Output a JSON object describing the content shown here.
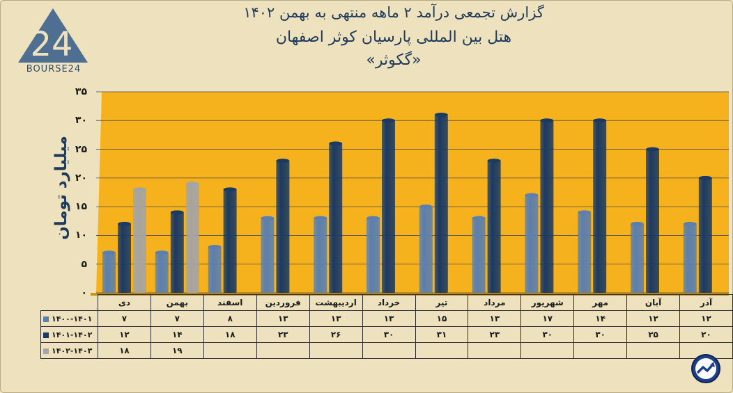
{
  "header": {
    "title_line1": "گزارش تجمعی درآمد ۲ ماهه منتهی به بهمن ۱۴۰۲",
    "title_line2": "هتل بین المللی پارسیان کوثر اصفهان",
    "title_line3": "«گکوثر»"
  },
  "logo": {
    "text": "BOURSE24",
    "icon": "bourse24-logo-icon"
  },
  "badge": {
    "icon": "trend-arrow-icon"
  },
  "colors": {
    "plot_bg": "#f6b21c",
    "series1": "#5b7fae",
    "series2": "#1b3a63",
    "series3": "#a4a4a4",
    "background": "#ede2bd"
  },
  "chart_data": {
    "type": "bar",
    "title": "گزارش تجمعی درآمد ۲ ماهه منتهی به بهمن ۱۴۰۲",
    "ylabel": "میلیارد تومان",
    "xlabel": "",
    "ylim": [
      0,
      35
    ],
    "y_ticks": [
      "۰",
      "۵",
      "۱۰",
      "۱۵",
      "۲۰",
      "۲۵",
      "۳۰",
      "۳۵"
    ],
    "grid": true,
    "legend": "data-table",
    "categories": [
      "دی",
      "بهمن",
      "اسفند",
      "فروردین",
      "اردیبهشت",
      "خرداد",
      "تیر",
      "مرداد",
      "شهریور",
      "مهر",
      "آبان",
      "آذر"
    ],
    "series": [
      {
        "name": "۱۴۰۰-۱۴۰۱",
        "values": [
          7,
          7,
          8,
          13,
          13,
          13,
          15,
          13,
          17,
          14,
          12,
          12
        ],
        "labels": [
          "۷",
          "۷",
          "۸",
          "۱۳",
          "۱۳",
          "۱۳",
          "۱۵",
          "۱۳",
          "۱۷",
          "۱۴",
          "۱۲",
          "۱۲"
        ]
      },
      {
        "name": "۱۴۰۱-۱۴۰۲",
        "values": [
          12,
          14,
          18,
          23,
          26,
          30,
          31,
          23,
          30,
          30,
          25,
          20
        ],
        "labels": [
          "۱۲",
          "۱۴",
          "۱۸",
          "۲۳",
          "۲۶",
          "۳۰",
          "۳۱",
          "۲۳",
          "۳۰",
          "۳۰",
          "۲۵",
          "۲۰"
        ]
      },
      {
        "name": "۱۴۰۲-۱۴۰۳",
        "values": [
          18,
          19,
          null,
          null,
          null,
          null,
          null,
          null,
          null,
          null,
          null,
          null
        ],
        "labels": [
          "۱۸",
          "۱۹",
          "",
          "",
          "",
          "",
          "",
          "",
          "",
          "",
          "",
          ""
        ]
      }
    ]
  }
}
